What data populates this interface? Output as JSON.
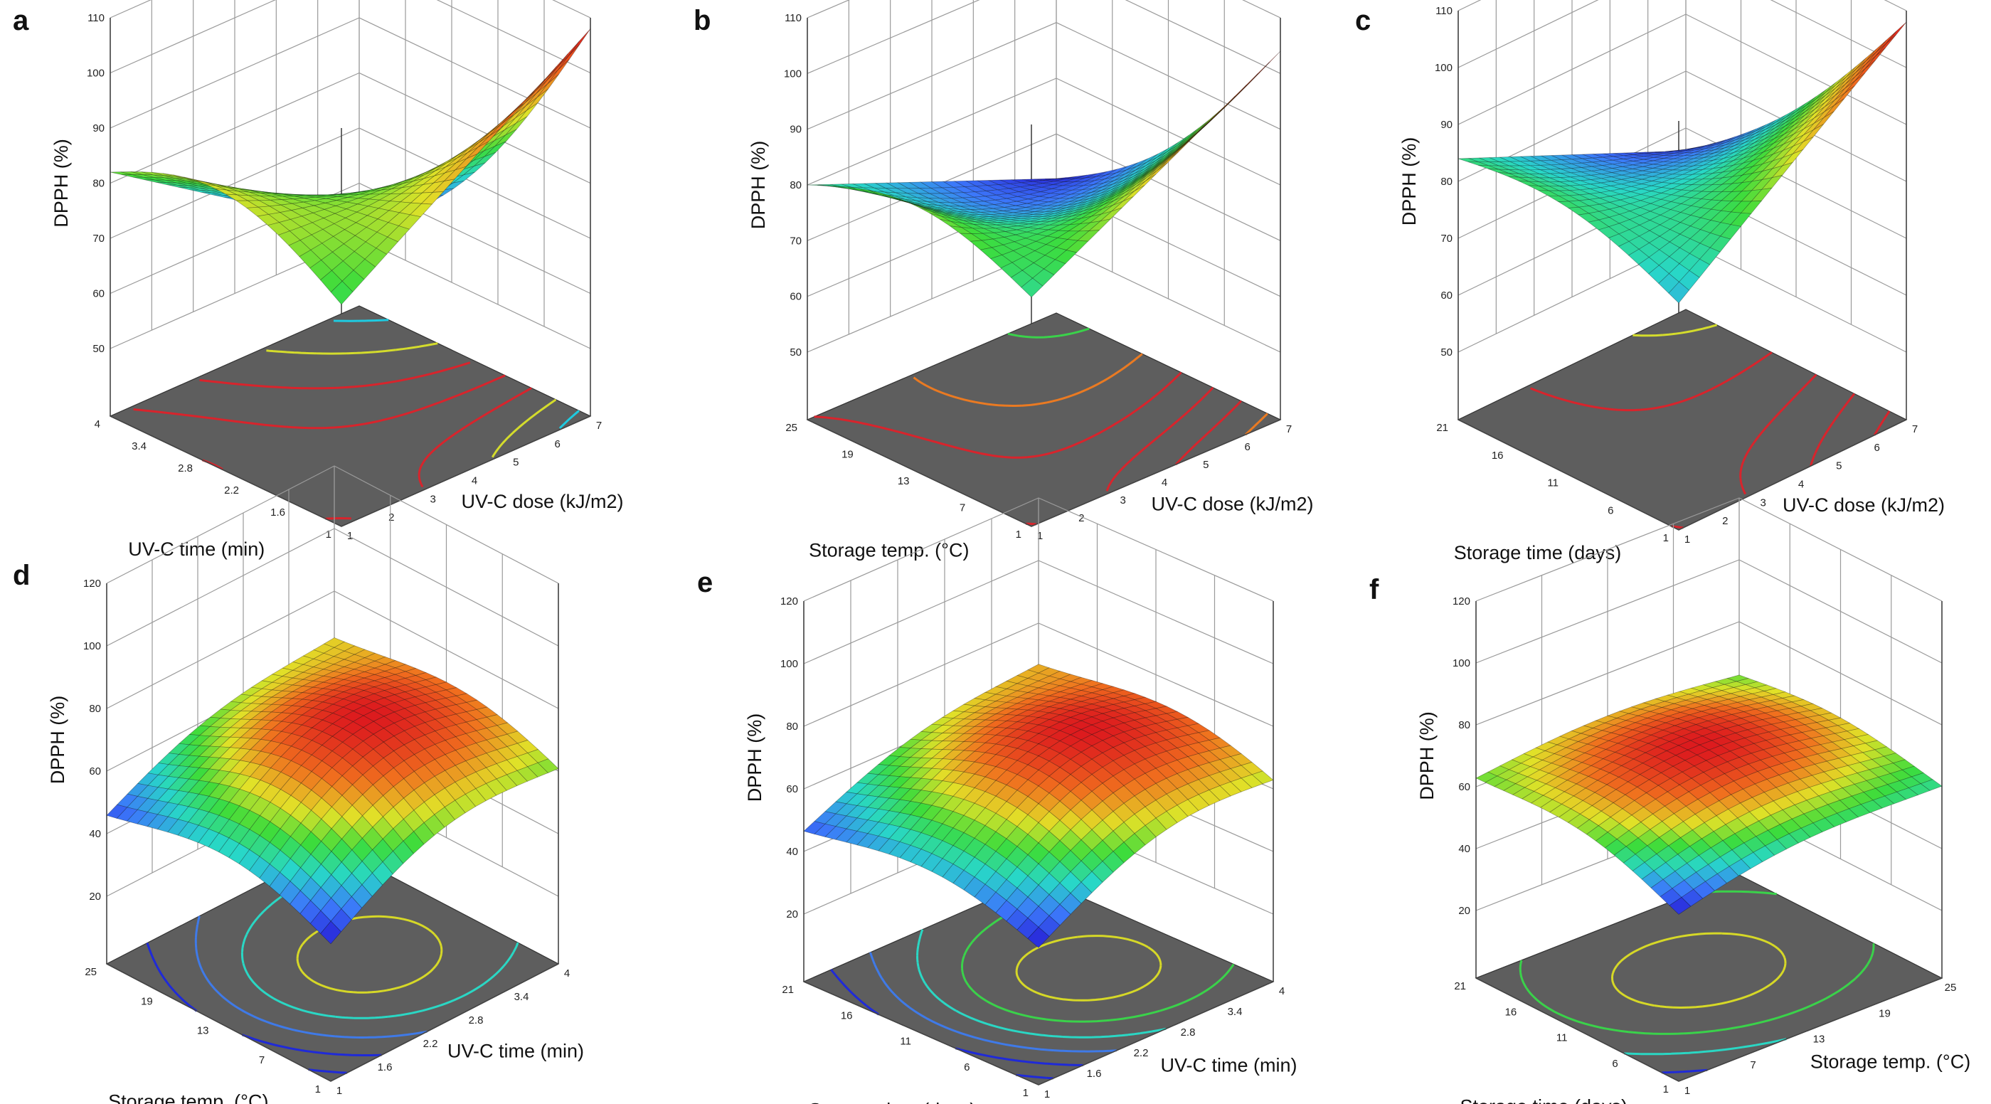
{
  "chart_data": [
    {
      "type": "surface3d",
      "panel": "a",
      "zlabel": "DPPH (%)",
      "xlabel": "UV-C dose (kJ/m2)",
      "ylabel": "UV-C time (min)",
      "x_ticks": [
        "1",
        "2",
        "3",
        "4",
        "5",
        "6",
        "7"
      ],
      "y_ticks": [
        "1",
        "1.6",
        "2.2",
        "2.8",
        "3.4",
        "4"
      ],
      "z_ticks": [
        "50",
        "60",
        "70",
        "80",
        "90",
        "100",
        "110"
      ],
      "xlim": [
        1,
        7
      ],
      "ylim": [
        1,
        4
      ],
      "zlim": [
        50,
        110
      ],
      "surface": {
        "form": "saddle",
        "corners": {
          "x0y0": 78,
          "x0y1": 82,
          "x1y0": 108,
          "x1y1": 52
        },
        "center": 78,
        "edge_curvature": 8
      },
      "contour_colors": [
        "#1ecbe1",
        "#d4dc2c",
        "#d8242c",
        "#d8242c",
        "#d8242c",
        "#d4dc2c",
        "#1ecbe1"
      ]
    },
    {
      "type": "surface3d",
      "panel": "b",
      "zlabel": "DPPH (%)",
      "xlabel": "UV-C dose (kJ/m2)",
      "ylabel": "Storage temp. (°C)",
      "x_ticks": [
        "1",
        "2",
        "3",
        "4",
        "5",
        "6",
        "7"
      ],
      "y_ticks": [
        "1",
        "7",
        "13",
        "19",
        "25"
      ],
      "z_ticks": [
        "50",
        "60",
        "70",
        "80",
        "90",
        "100",
        "110"
      ],
      "xlim": [
        1,
        7
      ],
      "ylim": [
        1,
        25
      ],
      "zlim": [
        50,
        110
      ],
      "surface": {
        "form": "saddle",
        "corners": {
          "x0y0": 79,
          "x0y1": 80,
          "x1y0": 104,
          "x1y1": 62
        },
        "center": 74,
        "edge_curvature": 6
      },
      "contour_colors": [
        "#3ad24a",
        "#ea7a22",
        "#d8242c",
        "#d8242c",
        "#d8242c",
        "#ea7a22"
      ]
    },
    {
      "type": "surface3d",
      "panel": "c",
      "zlabel": "DPPH (%)",
      "xlabel": "UV-C dose (kJ/m2)",
      "ylabel": "Storage time (days)",
      "x_ticks": [
        "1",
        "2",
        "3",
        "4",
        "5",
        "6",
        "7"
      ],
      "y_ticks": [
        "1",
        "6",
        "11",
        "16",
        "21"
      ],
      "z_ticks": [
        "50",
        "60",
        "70",
        "80",
        "90",
        "100",
        "110"
      ],
      "xlim": [
        1,
        7
      ],
      "ylim": [
        1,
        21
      ],
      "zlim": [
        50,
        110
      ],
      "surface": {
        "form": "saddle",
        "corners": {
          "x0y0": 78,
          "x0y1": 84,
          "x1y0": 108,
          "x1y1": 66
        },
        "center": 80,
        "edge_curvature": 4
      },
      "contour_colors": [
        "#d4dc2c",
        "#d8242c",
        "#d8242c",
        "#d8242c",
        "#d8242c"
      ]
    },
    {
      "type": "surface3d",
      "panel": "d",
      "zlabel": "DPPH (%)",
      "xlabel": "UV-C time (min)",
      "ylabel": "Storage temp. (°C)",
      "x_ticks": [
        "1",
        "1.6",
        "2.2",
        "2.8",
        "3.4",
        "4"
      ],
      "y_ticks": [
        "1",
        "7",
        "13",
        "19",
        "25"
      ],
      "z_ticks": [
        "20",
        "40",
        "60",
        "80",
        "100",
        "120"
      ],
      "xlim": [
        1,
        4
      ],
      "ylim": [
        1,
        25
      ],
      "zlim": [
        20,
        120
      ],
      "surface": {
        "form": "dome",
        "peak": 76,
        "peak_at": [
          0.6,
          0.45
        ],
        "corners": {
          "x0y0": 30,
          "x0y1": 38,
          "x1y0": 50,
          "x1y1": 60
        }
      },
      "contour_colors": [
        "#1f2ad8",
        "#1f2ad8",
        "#3f7ae8",
        "#2ad7c4",
        "#d6d827"
      ]
    },
    {
      "type": "surface3d",
      "panel": "e",
      "zlabel": "DPPH (%)",
      "xlabel": "UV-C time (min)",
      "ylabel": "Storage time (days)",
      "x_ticks": [
        "1",
        "1.6",
        "2.2",
        "2.8",
        "3.4",
        "4"
      ],
      "y_ticks": [
        "1",
        "6",
        "11",
        "16",
        "21"
      ],
      "z_ticks": [
        "20",
        "40",
        "60",
        "80",
        "100",
        "120"
      ],
      "xlim": [
        1,
        4
      ],
      "ylim": [
        1,
        21
      ],
      "zlim": [
        20,
        120
      ],
      "surface": {
        "form": "dome",
        "peak": 76,
        "peak_at": [
          0.65,
          0.45
        ],
        "corners": {
          "x0y0": 32,
          "x0y1": 40,
          "x1y0": 52,
          "x1y1": 62
        }
      },
      "contour_colors": [
        "#1f2ad8",
        "#1f2ad8",
        "#3f7ae8",
        "#2ad7c4",
        "#3ad24a",
        "#d6d827"
      ]
    },
    {
      "type": "surface3d",
      "panel": "f",
      "zlabel": "DPPH (%)",
      "xlabel": "Storage temp. (°C)",
      "ylabel": "Storage time (days)",
      "x_ticks": [
        "1",
        "7",
        "13",
        "19",
        "25"
      ],
      "y_ticks": [
        "1",
        "6",
        "11",
        "16",
        "21"
      ],
      "z_ticks": [
        "20",
        "40",
        "60",
        "80",
        "100",
        "120"
      ],
      "xlim": [
        1,
        25
      ],
      "ylim": [
        1,
        21
      ],
      "zlim": [
        20,
        120
      ],
      "surface": {
        "form": "dome",
        "peak": 72,
        "peak_at": [
          0.5,
          0.55
        ],
        "corners": {
          "x0y0": 45,
          "x0y1": 58,
          "x1y0": 56,
          "x1y1": 58
        }
      },
      "contour_colors": [
        "#1f2ad8",
        "#2ad7c4",
        "#3ad24a",
        "#d6d827"
      ]
    }
  ]
}
